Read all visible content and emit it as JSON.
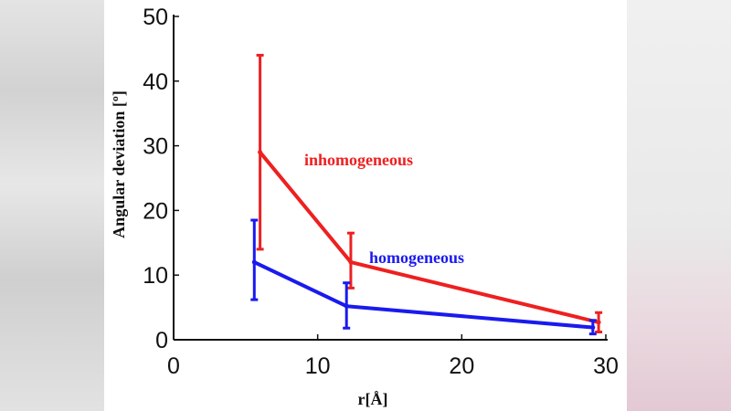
{
  "chart_data": {
    "type": "line",
    "title": "",
    "xlabel": "r[Å]",
    "ylabel": "Angular deviation [º]",
    "xlim": [
      0,
      30
    ],
    "ylim": [
      0,
      50
    ],
    "xticks": [
      0,
      10,
      20,
      30
    ],
    "yticks": [
      0,
      10,
      20,
      30,
      40,
      50
    ],
    "xtick_labels": [
      "0",
      "10",
      "20",
      "30"
    ],
    "ytick_labels": [
      "0",
      "10",
      "20",
      "30",
      "40",
      "50"
    ],
    "grid": false,
    "series": [
      {
        "name": "inhomogeneous",
        "color": "#ee2020",
        "x": [
          6,
          12.3,
          29.5
        ],
        "y": [
          29,
          12,
          2.7
        ],
        "err_low": [
          14,
          8,
          1.2
        ],
        "err_high": [
          44,
          16.5,
          4.2
        ]
      },
      {
        "name": "homogeneous",
        "color": "#1a1aee",
        "x": [
          5.6,
          12,
          29.1
        ],
        "y": [
          12,
          5.2,
          1.9
        ],
        "err_low": [
          6.2,
          1.8,
          0.9
        ],
        "err_high": [
          18.5,
          8.8,
          3.0
        ]
      }
    ]
  }
}
